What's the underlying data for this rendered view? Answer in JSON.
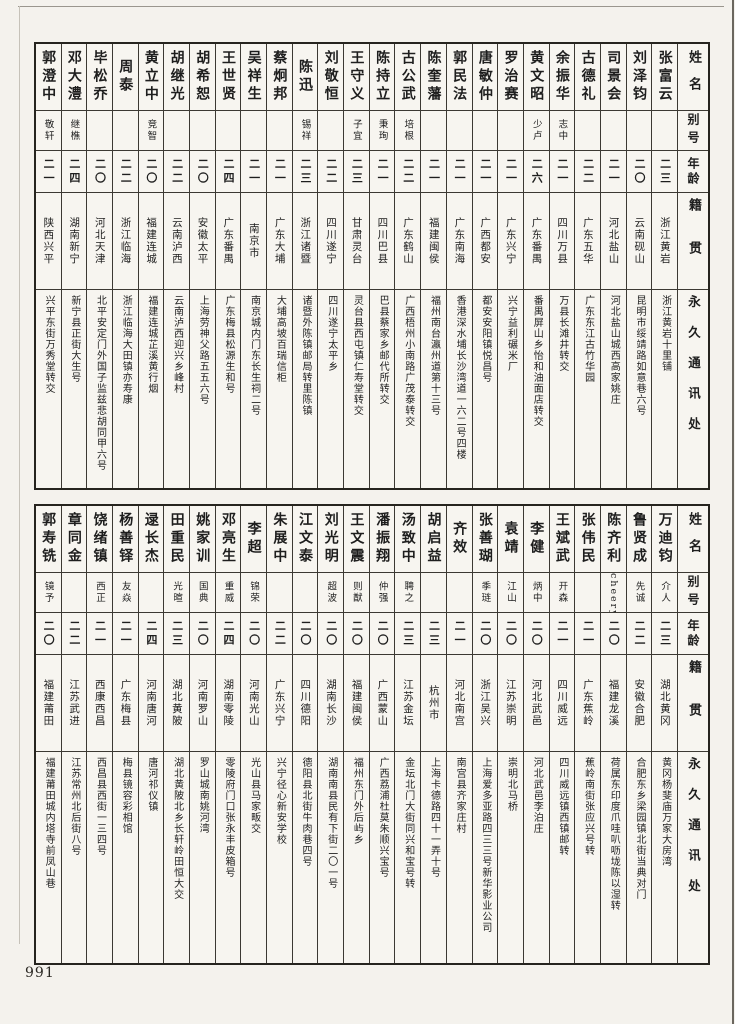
{
  "page": {
    "number": "991"
  },
  "headers": {
    "name": "姓名",
    "alias": "别号",
    "age": "年龄",
    "native": "籍贯",
    "address": "永久通讯处"
  },
  "table1": {
    "people": [
      {
        "name": "张富云",
        "alias": "",
        "age": "二三",
        "native": "浙江黄岩",
        "address": "浙江黄岩十里铺"
      },
      {
        "name": "刘泽钧",
        "alias": "",
        "age": "二〇",
        "native": "云南砚山",
        "address": "昆明市绥靖路如意巷六号"
      },
      {
        "name": "司景会",
        "alias": "",
        "age": "二一",
        "native": "河北盐山",
        "address": "河北盐山城西高家姚庄"
      },
      {
        "name": "古德礼",
        "alias": "",
        "age": "二二",
        "native": "广东五华",
        "address": "广东东江古竹华园"
      },
      {
        "name": "余振华",
        "alias": "志中",
        "age": "二一",
        "native": "四川万县",
        "address": "万县长滩井转交"
      },
      {
        "name": "黄文昭",
        "alias": "少卢",
        "age": "二六",
        "native": "广东番禺",
        "address": "番禺屏山乡怡和油面店转交"
      },
      {
        "name": "罗治赛",
        "alias": "",
        "age": "二一",
        "native": "广东兴宁",
        "address": "兴宁益利碾米厂"
      },
      {
        "name": "唐敏仲",
        "alias": "",
        "age": "二一",
        "native": "广西都安",
        "address": "都安安阳镇悦昌号"
      },
      {
        "name": "郭民法",
        "alias": "",
        "age": "二一",
        "native": "广东南海",
        "address": "香港深水埔长沙湾道一六二号四楼"
      },
      {
        "name": "陈奎藩",
        "alias": "",
        "age": "二一",
        "native": "福建闽侯",
        "address": "福州南台瀛州道第十三号"
      },
      {
        "name": "古公武",
        "alias": "培根",
        "age": "二二",
        "native": "广东鹤山",
        "address": "广西梧州小南路广茂泰转交"
      },
      {
        "name": "陈持立",
        "alias": "秉珣",
        "age": "二一",
        "native": "四川巴县",
        "address": "巴县蔡家乡邮代所转交"
      },
      {
        "name": "王守义",
        "alias": "子宜",
        "age": "二三",
        "native": "甘肃灵台",
        "address": "灵台县西屯镇仁寿堂转交"
      },
      {
        "name": "刘敬恒",
        "alias": "",
        "age": "二二",
        "native": "四川遂宁",
        "address": "四川遂宁太平乡"
      },
      {
        "name": "陈迅",
        "alias": "锡祥",
        "age": "二三",
        "native": "浙江诸暨",
        "address": "诸暨外陈镇邮局转里陈镇"
      },
      {
        "name": "蔡炯邦",
        "alias": "",
        "age": "二一",
        "native": "广东大埔",
        "address": "大埔高坡百瑞信柜"
      },
      {
        "name": "吴祥生",
        "alias": "",
        "age": "二一",
        "native": "南京市",
        "address": "南京城内门东长生祠二号"
      },
      {
        "name": "王世贤",
        "alias": "",
        "age": "二四",
        "native": "广东番禺",
        "address": "广东梅县松源生和号"
      },
      {
        "name": "胡希恕",
        "alias": "",
        "age": "二〇",
        "native": "安徽太平",
        "address": "上海劳神父路五五六号"
      },
      {
        "name": "胡继光",
        "alias": "",
        "age": "二二",
        "native": "云南泸西",
        "address": "云南泸西迎兴乡峰村"
      },
      {
        "name": "黄立中",
        "alias": "竞智",
        "age": "二〇",
        "native": "福建连城",
        "address": "福建连城芷溪黄行烟"
      },
      {
        "name": "周泰",
        "alias": "",
        "age": "二二",
        "native": "浙江临海",
        "address": "浙江临海大田镇亦寿康"
      },
      {
        "name": "毕松乔",
        "alias": "",
        "age": "二〇",
        "native": "河北天津",
        "address": "北平安定门外国子监兹悲胡同甲六号"
      },
      {
        "name": "邓大澧",
        "alias": "继樵",
        "age": "二四",
        "native": "湖南新宁",
        "address": "新宁县正街大生号"
      },
      {
        "name": "郭澄中",
        "alias": "敬轩",
        "age": "二一",
        "native": "陕西兴平",
        "address": "兴平东街万秀堂转交"
      }
    ]
  },
  "table2": {
    "people": [
      {
        "name": "万迪钧",
        "alias": "介人",
        "age": "二三",
        "native": "湖北黄冈",
        "address": "黄冈杨斐庙万家大房湾"
      },
      {
        "name": "鲁贤成",
        "alias": "先诚",
        "age": "二二",
        "native": "安徽合肥",
        "address": "合肥东乡梁园镇北街当典对门"
      },
      {
        "name": "陈齐利",
        "alias": "cheery",
        "age": "二〇",
        "native": "福建龙溪",
        "address": "荷属东印度爪哇叭呖垅陈以湿转"
      },
      {
        "name": "张伟民",
        "alias": "",
        "age": "二一",
        "native": "广东蕉岭",
        "address": "蕉岭南街张应兴号转"
      },
      {
        "name": "王斌武",
        "alias": "开森",
        "age": "二一",
        "native": "四川威远",
        "address": "四川威远镇西镇邮转"
      },
      {
        "name": "李健",
        "alias": "炳中",
        "age": "二〇",
        "native": "河北武邑",
        "address": "河北武邑李泊庄"
      },
      {
        "name": "袁靖",
        "alias": "江山",
        "age": "二〇",
        "native": "江苏崇明",
        "address": "崇明北马桥"
      },
      {
        "name": "张善瑚",
        "alias": "季琏",
        "age": "二〇",
        "native": "浙江吴兴",
        "address": "上海爱多亚路四三三号新华影业公司"
      },
      {
        "name": "齐效",
        "alias": "",
        "age": "二一",
        "native": "河北南宫",
        "address": "南宫县齐家庄村"
      },
      {
        "name": "胡启益",
        "alias": "",
        "age": "二三",
        "native": "杭州市",
        "address": "上海卡德路四十一弄十号"
      },
      {
        "name": "汤致中",
        "alias": "聘之",
        "age": "二三",
        "native": "江苏金坛",
        "address": "金坛北门大街同兴和宝号转"
      },
      {
        "name": "潘振翔",
        "alias": "仲强",
        "age": "二〇",
        "native": "广西蒙山",
        "address": "广西荔浦杜莫朱顺兴宝号"
      },
      {
        "name": "王文震",
        "alias": "则猷",
        "age": "二〇",
        "native": "福建闽侯",
        "address": "福州东门外后屿乡"
      },
      {
        "name": "刘光明",
        "alias": "超波",
        "age": "二〇",
        "native": "湖南长沙",
        "address": "湖南南县民有下街二〇一号"
      },
      {
        "name": "江文泰",
        "alias": "",
        "age": "二〇",
        "native": "四川德阳",
        "address": "德阳县北街牛肉巷四号"
      },
      {
        "name": "朱展中",
        "alias": "",
        "age": "二二",
        "native": "广东兴宁",
        "address": "兴宁径心新安学校"
      },
      {
        "name": "李超",
        "alias": "锦荣",
        "age": "二〇",
        "native": "河南光山",
        "address": "光山县马家畈交"
      },
      {
        "name": "邓亮生",
        "alias": "重威",
        "age": "二四",
        "native": "湖南零陵",
        "address": "零陵府门口张永丰皮箱号"
      },
      {
        "name": "姚家训",
        "alias": "国典",
        "age": "二〇",
        "native": "河南罗山",
        "address": "罗山城南姚河湾"
      },
      {
        "name": "田重民",
        "alias": "光暄",
        "age": "二三",
        "native": "湖北黄陂",
        "address": "湖北黄陂北乡长轩岭田恒大交"
      },
      {
        "name": "逯长杰",
        "alias": "",
        "age": "二四",
        "native": "河南唐河",
        "address": "唐河祁仪镇"
      },
      {
        "name": "杨善铎",
        "alias": "友焱",
        "age": "二一",
        "native": "广东梅县",
        "address": "梅县镜容彩相馆"
      },
      {
        "name": "饶绪镇",
        "alias": "西正",
        "age": "二一",
        "native": "西康西昌",
        "address": "西昌县西街一三四号"
      },
      {
        "name": "章同金",
        "alias": "",
        "age": "二二",
        "native": "江苏武进",
        "address": "江苏常州北后街八号"
      },
      {
        "name": "郭寿铣",
        "alias": "镜予",
        "age": "二〇",
        "native": "福建莆田",
        "address": "福建莆田城内塔寺前凤山巷"
      }
    ]
  }
}
